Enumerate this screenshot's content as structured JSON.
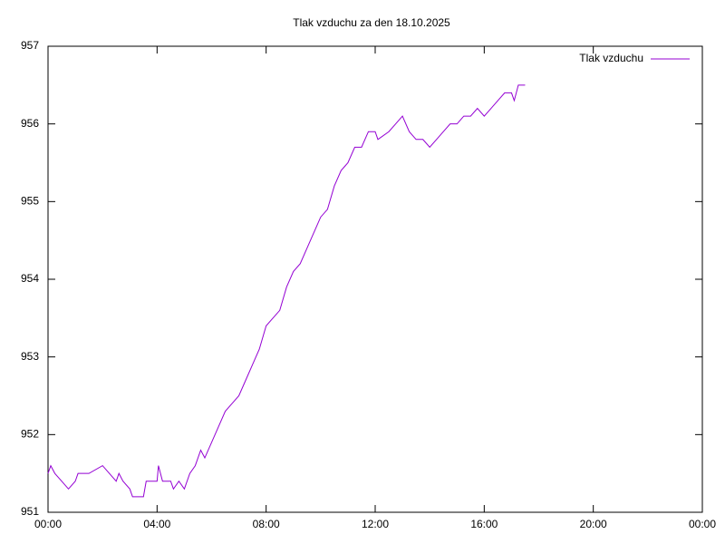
{
  "chart_data": {
    "type": "line",
    "title": "Tlak vzduchu za den 18.10.2025",
    "x": [
      0,
      0.1,
      0.25,
      0.5,
      0.75,
      1.0,
      1.1,
      1.5,
      2.0,
      2.25,
      2.5,
      2.6,
      2.75,
      3.0,
      3.1,
      3.5,
      3.6,
      4.0,
      4.05,
      4.2,
      4.5,
      4.6,
      4.8,
      5.0,
      5.2,
      5.4,
      5.6,
      5.75,
      6.0,
      6.25,
      6.5,
      6.75,
      7.0,
      7.25,
      7.5,
      7.75,
      8.0,
      8.25,
      8.5,
      8.75,
      9.0,
      9.25,
      9.5,
      9.75,
      10.0,
      10.25,
      10.5,
      10.75,
      11.0,
      11.25,
      11.5,
      11.75,
      12.0,
      12.1,
      12.5,
      12.75,
      13.0,
      13.25,
      13.5,
      13.75,
      14.0,
      14.25,
      14.5,
      14.75,
      15.0,
      15.25,
      15.5,
      15.75,
      16.0,
      16.25,
      16.5,
      16.75,
      17.0,
      17.1,
      17.25,
      17.5
    ],
    "series": [
      {
        "name": "Tlak vzduchu",
        "color": "#9400d3",
        "values": [
          951.5,
          951.6,
          951.5,
          951.4,
          951.3,
          951.4,
          951.5,
          951.5,
          951.6,
          951.5,
          951.4,
          951.5,
          951.4,
          951.3,
          951.2,
          951.2,
          951.4,
          951.4,
          951.6,
          951.4,
          951.4,
          951.3,
          951.4,
          951.3,
          951.5,
          951.6,
          951.8,
          951.7,
          951.9,
          952.1,
          952.3,
          952.4,
          952.5,
          952.7,
          952.9,
          953.1,
          953.4,
          953.5,
          953.6,
          953.9,
          954.1,
          954.2,
          954.4,
          954.6,
          954.8,
          954.9,
          955.2,
          955.4,
          955.5,
          955.7,
          955.7,
          955.9,
          955.9,
          955.8,
          955.9,
          956.0,
          956.1,
          955.9,
          955.8,
          955.8,
          955.7,
          955.8,
          955.9,
          956.0,
          956.0,
          956.1,
          956.1,
          956.2,
          956.1,
          956.2,
          956.3,
          956.4,
          956.4,
          956.3,
          956.5,
          956.5
        ]
      }
    ],
    "xlim": [
      0,
      24
    ],
    "xticks": [
      {
        "value": 0,
        "label": "00:00"
      },
      {
        "value": 4,
        "label": "04:00"
      },
      {
        "value": 8,
        "label": "08:00"
      },
      {
        "value": 12,
        "label": "12:00"
      },
      {
        "value": 16,
        "label": "16:00"
      },
      {
        "value": 20,
        "label": "20:00"
      },
      {
        "value": 24,
        "label": "00:00"
      }
    ],
    "ylim": [
      951,
      957
    ],
    "yticks": [
      951,
      952,
      953,
      954,
      955,
      956,
      957
    ],
    "grid": false,
    "legend": "top-right"
  }
}
